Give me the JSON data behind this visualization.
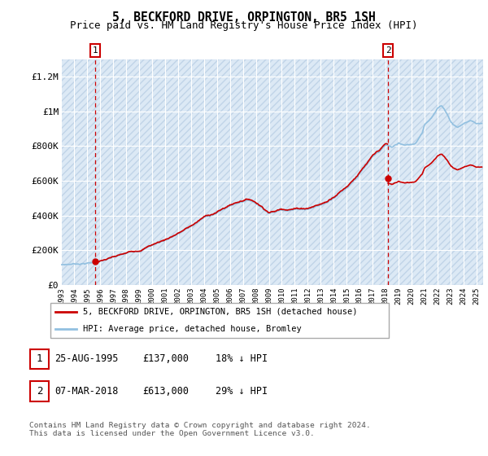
{
  "title": "5, BECKFORD DRIVE, ORPINGTON, BR5 1SH",
  "subtitle": "Price paid vs. HM Land Registry's House Price Index (HPI)",
  "ylim": [
    0,
    1300000
  ],
  "yticks": [
    0,
    200000,
    400000,
    600000,
    800000,
    1000000,
    1200000
  ],
  "ytick_labels": [
    "£0",
    "£200K",
    "£400K",
    "£600K",
    "£800K",
    "£1M",
    "£1.2M"
  ],
  "sale1_year": 1995.646,
  "sale1_price": 137000,
  "sale2_year": 2018.18,
  "sale2_price": 613000,
  "hpi_color": "#92c0e0",
  "price_color": "#cc0000",
  "bg_color": "#dce9f5",
  "hatch_color": "#c0d4e8",
  "grid_color": "#ffffff",
  "legend_label1": "5, BECKFORD DRIVE, ORPINGTON, BR5 1SH (detached house)",
  "legend_label2": "HPI: Average price, detached house, Bromley",
  "footer": "Contains HM Land Registry data © Crown copyright and database right 2024.\nThis data is licensed under the Open Government Licence v3.0.",
  "title_fontsize": 10.5,
  "subtitle_fontsize": 9,
  "axis_fontsize": 8,
  "xtick_fontsize": 6.5,
  "background_color": "#ffffff",
  "xstart": 1993,
  "xend": 2025.5
}
